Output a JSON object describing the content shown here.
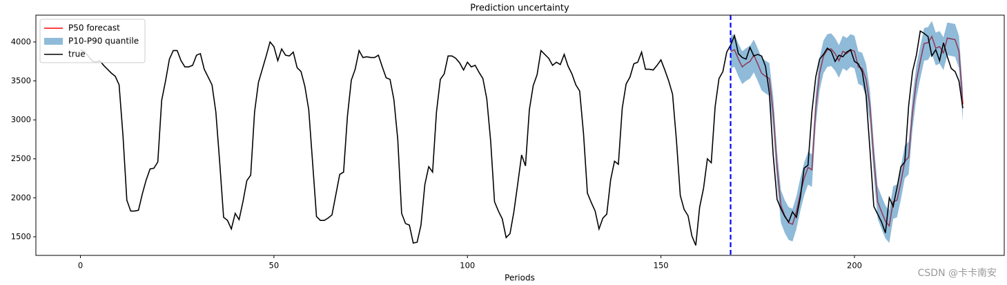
{
  "chart_data": {
    "type": "line",
    "title": "Prediction uncertainty",
    "xlabel": "Periods",
    "xlim": [
      -11.5,
      238.7
    ],
    "ylim": [
      1261,
      4344
    ],
    "xticks": [
      0,
      50,
      100,
      150,
      200
    ],
    "yticks": [
      1500,
      2000,
      2500,
      3000,
      3500,
      4000
    ],
    "legend": "upper left",
    "vline": {
      "x": 168,
      "color": "#0000ff"
    },
    "watermark": "CSDN @卡卡南安",
    "series": [
      {
        "name": "P50 forecast",
        "color": "#ff0000",
        "x": [
          168,
          169,
          170,
          171,
          172,
          173,
          174,
          175,
          176,
          177,
          178,
          179,
          180,
          181,
          182,
          183,
          184,
          185,
          186,
          187,
          188,
          189,
          190,
          191,
          192,
          193,
          194,
          195,
          196,
          197,
          198,
          199,
          200,
          201,
          202,
          203,
          204,
          205,
          206,
          207,
          208,
          209,
          210,
          211,
          212,
          213,
          214,
          215,
          216,
          217,
          218,
          219,
          220,
          221,
          222,
          223,
          224,
          225,
          226,
          227,
          228
        ],
        "values": [
          3880,
          3900,
          3780,
          3680,
          3720,
          3750,
          3830,
          3720,
          3600,
          3560,
          3530,
          3100,
          2400,
          1900,
          1770,
          1680,
          1660,
          1820,
          2050,
          2250,
          2390,
          2360,
          3150,
          3600,
          3820,
          3900,
          3910,
          3850,
          3760,
          3880,
          3850,
          3900,
          3880,
          3680,
          3660,
          3520,
          3180,
          2500,
          1950,
          1820,
          1700,
          1640,
          1950,
          1970,
          2200,
          2470,
          2520,
          3100,
          3500,
          3750,
          3980,
          3990,
          4070,
          3920,
          3940,
          3860,
          4050,
          4040,
          4030,
          3880,
          3200
        ]
      },
      {
        "name": "P10-P90 quantile",
        "color": "#1f77b4",
        "alpha": 0.5,
        "x": [
          168,
          169,
          170,
          171,
          172,
          173,
          174,
          175,
          176,
          177,
          178,
          179,
          180,
          181,
          182,
          183,
          184,
          185,
          186,
          187,
          188,
          189,
          190,
          191,
          192,
          193,
          194,
          195,
          196,
          197,
          198,
          199,
          200,
          201,
          202,
          203,
          204,
          205,
          206,
          207,
          208,
          209,
          210,
          211,
          212,
          213,
          214,
          215,
          216,
          217,
          218,
          219,
          220,
          221,
          222,
          223,
          224,
          225,
          226,
          227,
          228
        ],
        "lower": [
          3660,
          3680,
          3560,
          3460,
          3500,
          3530,
          3610,
          3500,
          3380,
          3340,
          3310,
          2880,
          2180,
          1680,
          1550,
          1460,
          1440,
          1600,
          1830,
          2030,
          2170,
          2140,
          2930,
          3380,
          3600,
          3680,
          3690,
          3630,
          3540,
          3660,
          3630,
          3680,
          3660,
          3460,
          3440,
          3300,
          2960,
          2280,
          1730,
          1600,
          1480,
          1420,
          1730,
          1750,
          1980,
          2250,
          2300,
          2880,
          3280,
          3530,
          3760,
          3770,
          3850,
          3700,
          3720,
          3640,
          3830,
          3820,
          3810,
          3660,
          2980
        ],
        "upper": [
          4080,
          4100,
          3980,
          3880,
          3920,
          3950,
          4030,
          3920,
          3800,
          3760,
          3730,
          3300,
          2600,
          2100,
          1970,
          1880,
          1860,
          2020,
          2250,
          2450,
          2590,
          2560,
          3350,
          3800,
          4020,
          4100,
          4110,
          4050,
          3960,
          4080,
          4050,
          4100,
          4080,
          3880,
          3860,
          3720,
          3380,
          2700,
          2150,
          2020,
          1900,
          1840,
          2150,
          2170,
          2400,
          2670,
          2720,
          3300,
          3700,
          3950,
          4180,
          4190,
          4270,
          4120,
          4140,
          4060,
          4250,
          4240,
          4230,
          4080,
          3400
        ]
      },
      {
        "name": "true",
        "color": "#000000",
        "x": [
          0,
          1,
          2,
          3,
          4,
          5,
          6,
          7,
          8,
          9,
          10,
          11,
          12,
          13,
          14,
          15,
          16,
          17,
          18,
          19,
          20,
          21,
          22,
          23,
          24,
          25,
          26,
          27,
          28,
          29,
          30,
          31,
          32,
          33,
          34,
          35,
          36,
          37,
          38,
          39,
          40,
          41,
          42,
          43,
          44,
          45,
          46,
          47,
          48,
          49,
          50,
          51,
          52,
          53,
          54,
          55,
          56,
          57,
          58,
          59,
          60,
          61,
          62,
          63,
          64,
          65,
          66,
          67,
          68,
          69,
          70,
          71,
          72,
          73,
          74,
          75,
          76,
          77,
          78,
          79,
          80,
          81,
          82,
          83,
          84,
          85,
          86,
          87,
          88,
          89,
          90,
          91,
          92,
          93,
          94,
          95,
          96,
          97,
          98,
          99,
          100,
          101,
          102,
          103,
          104,
          105,
          106,
          107,
          108,
          109,
          110,
          111,
          112,
          113,
          114,
          115,
          116,
          117,
          118,
          119,
          120,
          121,
          122,
          123,
          124,
          125,
          126,
          127,
          128,
          129,
          130,
          131,
          132,
          133,
          134,
          135,
          136,
          137,
          138,
          139,
          140,
          141,
          142,
          143,
          144,
          145,
          146,
          147,
          148,
          149,
          150,
          151,
          152,
          153,
          154,
          155,
          156,
          157,
          158,
          159,
          160,
          161,
          162,
          163,
          164,
          165,
          166,
          167,
          168,
          169,
          170,
          171,
          172,
          173,
          174,
          175,
          176,
          177,
          178,
          179,
          180,
          181,
          182,
          183,
          184,
          185,
          186,
          187,
          188,
          189,
          190,
          191,
          192,
          193,
          194,
          195,
          196,
          197,
          198,
          199,
          200,
          201,
          202,
          203,
          204,
          205,
          206,
          207,
          208,
          209,
          210,
          211,
          212,
          213,
          214,
          215,
          216,
          217,
          218,
          219,
          220,
          221,
          222,
          223,
          224,
          225,
          226,
          227,
          228
        ],
        "values": [
          3900,
          3880,
          3820,
          3760,
          3740,
          3760,
          3700,
          3650,
          3600,
          3560,
          3450,
          2800,
          1970,
          1830,
          1830,
          1840,
          2050,
          2230,
          2370,
          2380,
          2460,
          3250,
          3500,
          3780,
          3890,
          3890,
          3760,
          3680,
          3680,
          3700,
          3830,
          3850,
          3650,
          3550,
          3450,
          3100,
          2450,
          1750,
          1710,
          1600,
          1800,
          1720,
          1950,
          2220,
          2290,
          3100,
          3480,
          3650,
          3820,
          4000,
          3940,
          3760,
          3910,
          3830,
          3820,
          3870,
          3670,
          3620,
          3430,
          3130,
          2450,
          1760,
          1710,
          1710,
          1740,
          1780,
          2040,
          2300,
          2330,
          3050,
          3510,
          3650,
          3890,
          3800,
          3810,
          3800,
          3800,
          3830,
          3680,
          3540,
          3520,
          3260,
          2750,
          1800,
          1670,
          1650,
          1420,
          1430,
          1650,
          2170,
          2400,
          2330,
          3100,
          3520,
          3590,
          3820,
          3820,
          3790,
          3730,
          3640,
          3740,
          3680,
          3700,
          3610,
          3530,
          3270,
          2730,
          1950,
          1830,
          1730,
          1490,
          1540,
          1820,
          2180,
          2550,
          2410,
          3130,
          3440,
          3580,
          3890,
          3840,
          3790,
          3700,
          3740,
          3710,
          3840,
          3690,
          3590,
          3450,
          3370,
          2820,
          2060,
          1940,
          1830,
          1600,
          1740,
          1790,
          2230,
          2470,
          2430,
          3150,
          3460,
          3550,
          3720,
          3740,
          3870,
          3650,
          3650,
          3640,
          3700,
          3770,
          3640,
          3500,
          3330,
          2740,
          2030,
          1850,
          1770,
          1510,
          1390,
          1880,
          2120,
          2500,
          2450,
          3170,
          3530,
          3620,
          3870,
          3960,
          4080,
          3850,
          3800,
          3780,
          3930,
          3820,
          3840,
          3820,
          3690,
          3350,
          2550,
          1980,
          1860,
          1760,
          1690,
          1820,
          1750,
          2000,
          2380,
          2420,
          3100,
          3550,
          3780,
          3840,
          3920,
          3880,
          3750,
          3830,
          3810,
          3870,
          3900,
          3750,
          3720,
          3620,
          3310,
          2620,
          1890,
          1790,
          1690,
          1550,
          2000,
          1890,
          2130,
          2400,
          2460,
          3180,
          3620,
          3830,
          4140,
          4110,
          4070,
          3820,
          3900,
          3760,
          3990,
          3810,
          3660,
          3620,
          3500,
          3150
        ]
      }
    ]
  }
}
